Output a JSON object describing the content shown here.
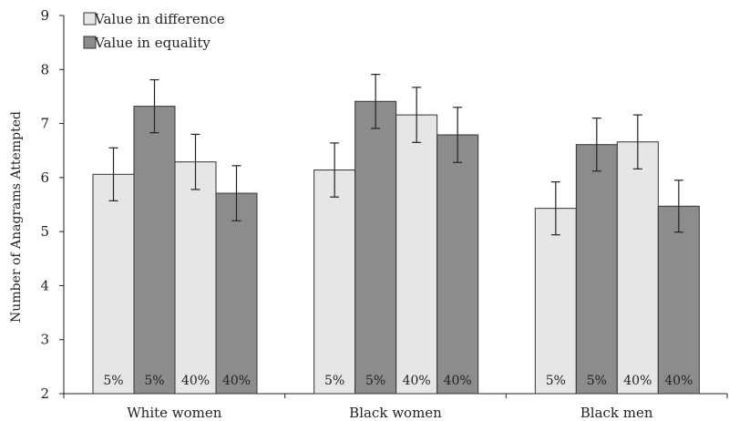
{
  "chart_data": {
    "type": "bar",
    "ylabel": "Number of Anagrams Attempted",
    "ylim": [
      2,
      9
    ],
    "yticks": [
      2,
      3,
      4,
      5,
      6,
      7,
      8,
      9
    ],
    "groups": [
      "White women",
      "Black women",
      "Black men"
    ],
    "legend": [
      {
        "name": "Value in difference",
        "color": "#e6e6e6"
      },
      {
        "name": "Value in equality",
        "color": "#8c8c8c"
      }
    ],
    "legend_position": "top-left",
    "grid": false,
    "bars": [
      {
        "group": "White women",
        "series": "Value in difference",
        "label": "5%",
        "value": 6.06,
        "error": 0.49
      },
      {
        "group": "White women",
        "series": "Value in equality",
        "label": "5%",
        "value": 7.32,
        "error": 0.49
      },
      {
        "group": "White women",
        "series": "Value in difference",
        "label": "40%",
        "value": 6.29,
        "error": 0.51
      },
      {
        "group": "White women",
        "series": "Value in equality",
        "label": "40%",
        "value": 5.71,
        "error": 0.51
      },
      {
        "group": "Black women",
        "series": "Value in difference",
        "label": "5%",
        "value": 6.14,
        "error": 0.5
      },
      {
        "group": "Black women",
        "series": "Value in equality",
        "label": "5%",
        "value": 7.41,
        "error": 0.5
      },
      {
        "group": "Black women",
        "series": "Value in difference",
        "label": "40%",
        "value": 7.16,
        "error": 0.51
      },
      {
        "group": "Black women",
        "series": "Value in equality",
        "label": "40%",
        "value": 6.79,
        "error": 0.51
      },
      {
        "group": "Black men",
        "series": "Value in difference",
        "label": "5%",
        "value": 5.43,
        "error": 0.49
      },
      {
        "group": "Black men",
        "series": "Value in equality",
        "label": "5%",
        "value": 6.61,
        "error": 0.49
      },
      {
        "group": "Black men",
        "series": "Value in difference",
        "label": "40%",
        "value": 6.66,
        "error": 0.5
      },
      {
        "group": "Black men",
        "series": "Value in equality",
        "label": "40%",
        "value": 5.47,
        "error": 0.48
      }
    ]
  }
}
